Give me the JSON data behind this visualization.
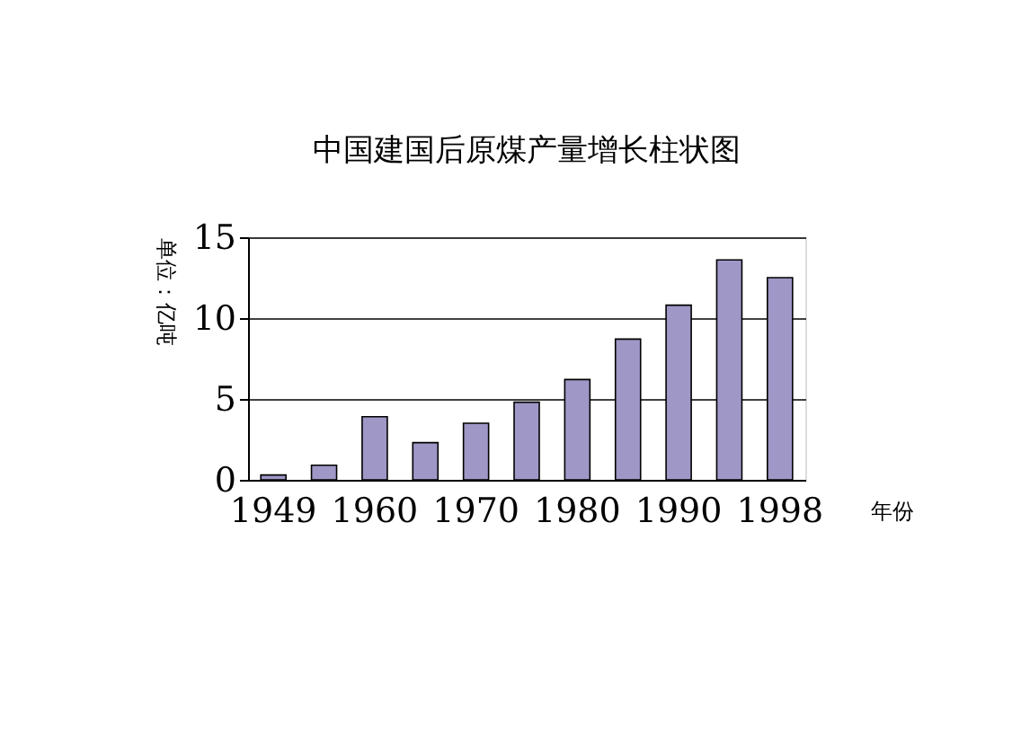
{
  "chart_data": {
    "type": "bar",
    "title": "中国建国后原煤产量增长柱状图",
    "ylabel": "单位：亿吨",
    "xlabel": "年份",
    "categories": [
      "1949",
      null,
      "1960",
      null,
      "1970",
      null,
      "1980",
      null,
      "1990",
      null,
      "1998"
    ],
    "values": [
      0.3,
      0.9,
      3.9,
      2.3,
      3.5,
      4.8,
      6.2,
      8.7,
      10.8,
      13.6,
      12.5
    ],
    "color": "#9f97c6",
    "ylim": [
      0,
      15
    ],
    "yticks": [
      0,
      5,
      10,
      15
    ],
    "grid": "y"
  }
}
